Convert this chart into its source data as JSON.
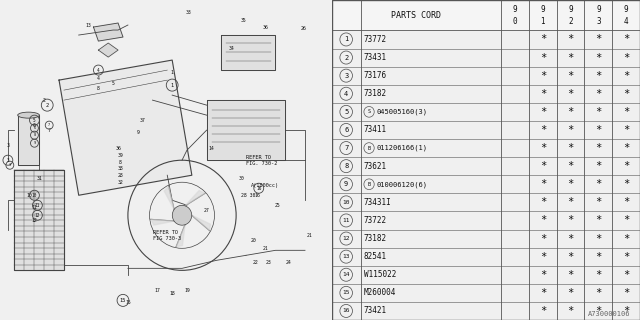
{
  "watermark": "A730000106",
  "rows": [
    {
      "num": "1",
      "part": "73772",
      "special": null,
      "stars": [
        false,
        true,
        true,
        true,
        true
      ]
    },
    {
      "num": "2",
      "part": "73431",
      "special": null,
      "stars": [
        false,
        true,
        true,
        true,
        true
      ]
    },
    {
      "num": "3",
      "part": "73176",
      "special": null,
      "stars": [
        false,
        true,
        true,
        true,
        true
      ]
    },
    {
      "num": "4",
      "part": "73182",
      "special": null,
      "stars": [
        false,
        true,
        true,
        true,
        true
      ]
    },
    {
      "num": "5",
      "part": "045005160(3)",
      "special": "S",
      "stars": [
        false,
        true,
        true,
        true,
        true
      ]
    },
    {
      "num": "6",
      "part": "73411",
      "special": null,
      "stars": [
        false,
        true,
        true,
        true,
        true
      ]
    },
    {
      "num": "7",
      "part": "011206166(1)",
      "special": "B",
      "stars": [
        false,
        true,
        true,
        true,
        true
      ]
    },
    {
      "num": "8",
      "part": "73621",
      "special": null,
      "stars": [
        false,
        true,
        true,
        true,
        true
      ]
    },
    {
      "num": "9",
      "part": "010006120(6)",
      "special": "B",
      "stars": [
        false,
        true,
        true,
        true,
        true
      ]
    },
    {
      "num": "10",
      "part": "73431I",
      "special": null,
      "stars": [
        false,
        true,
        true,
        true,
        true
      ]
    },
    {
      "num": "11",
      "part": "73722",
      "special": null,
      "stars": [
        false,
        true,
        true,
        true,
        true
      ]
    },
    {
      "num": "12",
      "part": "73182",
      "special": null,
      "stars": [
        false,
        true,
        true,
        true,
        true
      ]
    },
    {
      "num": "13",
      "part": "82541",
      "special": null,
      "stars": [
        false,
        true,
        true,
        true,
        true
      ]
    },
    {
      "num": "14",
      "part": "W115022",
      "special": null,
      "stars": [
        false,
        true,
        true,
        true,
        true
      ]
    },
    {
      "num": "15",
      "part": "M260004",
      "special": null,
      "stars": [
        false,
        true,
        true,
        true,
        true
      ]
    },
    {
      "num": "16",
      "part": "73421",
      "special": null,
      "stars": [
        false,
        true,
        true,
        true,
        true
      ]
    }
  ],
  "bg_color": "#f0f0f0",
  "table_bg": "#ffffff",
  "line_color": "#444444",
  "text_color": "#111111",
  "years": [
    "9\n0",
    "9\n1",
    "9\n2",
    "9\n3",
    "9\n4"
  ]
}
